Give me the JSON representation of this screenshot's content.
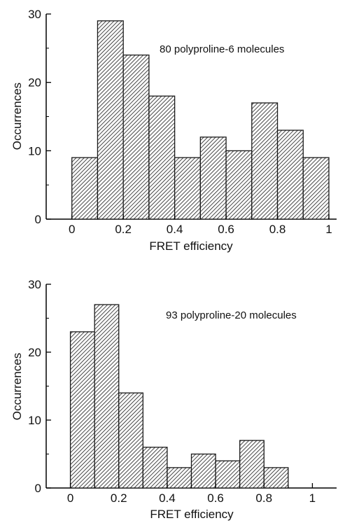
{
  "chart_data": [
    {
      "type": "bar",
      "annotation": "80 polyproline-6 molecules",
      "xlabel": "FRET  efficiency",
      "ylabel": "Occurrences",
      "xlim": [
        -0.1,
        1.03
      ],
      "ylim": [
        0,
        30
      ],
      "xticks": [
        "0",
        "0.2",
        "0.4",
        "0.6",
        "0.8",
        "1"
      ],
      "yticks": [
        "0",
        "10",
        "20",
        "30"
      ],
      "bins": [
        {
          "start": 0.0,
          "end": 0.1,
          "value": 9
        },
        {
          "start": 0.1,
          "end": 0.2,
          "value": 29
        },
        {
          "start": 0.2,
          "end": 0.3,
          "value": 24
        },
        {
          "start": 0.3,
          "end": 0.4,
          "value": 18
        },
        {
          "start": 0.4,
          "end": 0.5,
          "value": 9
        },
        {
          "start": 0.5,
          "end": 0.6,
          "value": 12
        },
        {
          "start": 0.6,
          "end": 0.7,
          "value": 10
        },
        {
          "start": 0.7,
          "end": 0.8,
          "value": 17
        },
        {
          "start": 0.8,
          "end": 0.9,
          "value": 13
        },
        {
          "start": 0.9,
          "end": 1.0,
          "value": 9
        }
      ],
      "bar_fill": "hatched",
      "bar_color": "#1a1a1a",
      "grid": false,
      "legend": "none"
    },
    {
      "type": "bar",
      "annotation": "93 polyproline-20 molecules",
      "xlabel": "FRET efficiency",
      "ylabel": "Occurrences",
      "xlim": [
        -0.1,
        1.1
      ],
      "ylim": [
        0,
        30
      ],
      "xticks": [
        "0",
        "0.2",
        "0.4",
        "0.6",
        "0.8",
        "1"
      ],
      "yticks": [
        "0",
        "10",
        "20",
        "30"
      ],
      "bins": [
        {
          "start": 0.0,
          "end": 0.1,
          "value": 23
        },
        {
          "start": 0.1,
          "end": 0.2,
          "value": 27
        },
        {
          "start": 0.2,
          "end": 0.3,
          "value": 14
        },
        {
          "start": 0.3,
          "end": 0.4,
          "value": 6
        },
        {
          "start": 0.4,
          "end": 0.5,
          "value": 3
        },
        {
          "start": 0.5,
          "end": 0.6,
          "value": 5
        },
        {
          "start": 0.6,
          "end": 0.7,
          "value": 4
        },
        {
          "start": 0.7,
          "end": 0.8,
          "value": 7
        },
        {
          "start": 0.8,
          "end": 0.9,
          "value": 3
        }
      ],
      "bar_fill": "hatched",
      "bar_color": "#1a1a1a",
      "grid": false,
      "legend": "none"
    }
  ]
}
